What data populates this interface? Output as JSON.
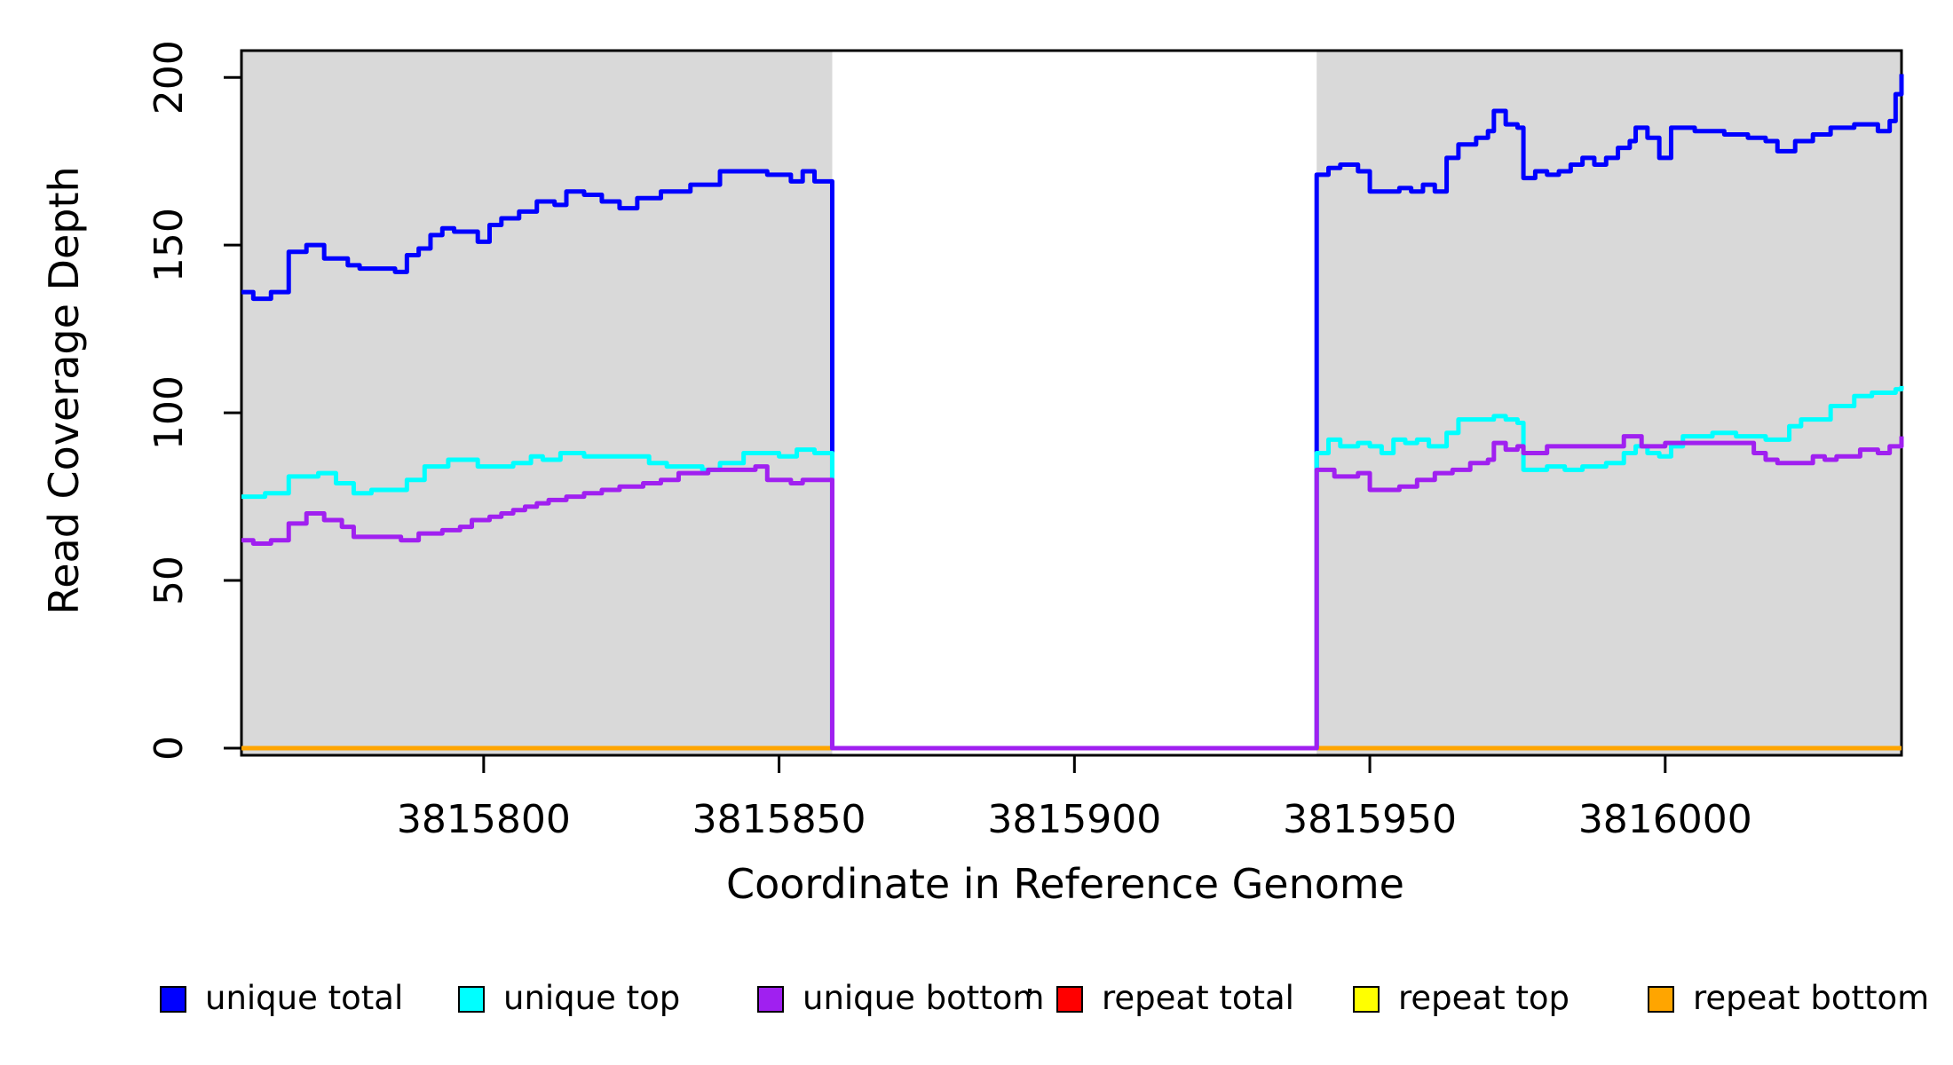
{
  "figure": {
    "background": "#ffffff",
    "plot_background_shaded": "#d9d9d9"
  },
  "chart_data": {
    "type": "line",
    "subtype": "step-coverage",
    "title": "",
    "xlabel": "Coordinate in Reference Genome",
    "ylabel": "Read Coverage Depth",
    "xlim": [
      3815759,
      3816040
    ],
    "ylim": [
      0,
      208
    ],
    "x_ticks": [
      3815800,
      3815850,
      3815900,
      3815950,
      3816000
    ],
    "y_ticks": [
      0,
      50,
      100,
      150,
      200
    ],
    "grid": false,
    "legend_position": "bottom",
    "shaded_regions": [
      {
        "start": 3815759,
        "end": 3815859,
        "color": "#d9d9d9"
      },
      {
        "start": 3815941,
        "end": 3816040,
        "color": "#d9d9d9"
      }
    ],
    "gap_region": {
      "start": 3815859,
      "end": 3815941,
      "note": "all unique coverage drops to 0"
    },
    "series": [
      {
        "name": "repeat total",
        "color": "#ff0000",
        "points": [
          [
            3815759,
            0
          ],
          [
            3816040,
            0
          ]
        ]
      },
      {
        "name": "repeat top",
        "color": "#ffff00",
        "points": [
          [
            3815759,
            0
          ],
          [
            3816040,
            0
          ]
        ]
      },
      {
        "name": "repeat bottom",
        "color": "#ffa500",
        "points": [
          [
            3815759,
            0
          ],
          [
            3816040,
            0
          ]
        ]
      },
      {
        "name": "unique total",
        "color": "#0000ff",
        "points": [
          [
            3815759,
            136
          ],
          [
            3815761,
            134
          ],
          [
            3815764,
            136
          ],
          [
            3815767,
            148
          ],
          [
            3815770,
            150
          ],
          [
            3815773,
            146
          ],
          [
            3815777,
            144
          ],
          [
            3815779,
            143
          ],
          [
            3815785,
            142
          ],
          [
            3815787,
            147
          ],
          [
            3815789,
            149
          ],
          [
            3815791,
            153
          ],
          [
            3815793,
            155
          ],
          [
            3815795,
            154
          ],
          [
            3815799,
            151
          ],
          [
            3815801,
            156
          ],
          [
            3815803,
            158
          ],
          [
            3815806,
            160
          ],
          [
            3815809,
            163
          ],
          [
            3815812,
            162
          ],
          [
            3815814,
            166
          ],
          [
            3815817,
            165
          ],
          [
            3815820,
            163
          ],
          [
            3815823,
            161
          ],
          [
            3815826,
            164
          ],
          [
            3815830,
            166
          ],
          [
            3815835,
            168
          ],
          [
            3815840,
            172
          ],
          [
            3815848,
            171
          ],
          [
            3815852,
            169
          ],
          [
            3815854,
            172
          ],
          [
            3815856,
            169
          ],
          [
            3815859,
            0
          ],
          [
            3815941,
            171
          ],
          [
            3815943,
            173
          ],
          [
            3815945,
            174
          ],
          [
            3815948,
            172
          ],
          [
            3815950,
            166
          ],
          [
            3815955,
            167
          ],
          [
            3815957,
            166
          ],
          [
            3815959,
            168
          ],
          [
            3815961,
            166
          ],
          [
            3815963,
            176
          ],
          [
            3815965,
            180
          ],
          [
            3815968,
            182
          ],
          [
            3815970,
            184
          ],
          [
            3815971,
            190
          ],
          [
            3815973,
            186
          ],
          [
            3815975,
            185
          ],
          [
            3815976,
            170
          ],
          [
            3815978,
            172
          ],
          [
            3815980,
            171
          ],
          [
            3815982,
            172
          ],
          [
            3815984,
            174
          ],
          [
            3815986,
            176
          ],
          [
            3815988,
            174
          ],
          [
            3815990,
            176
          ],
          [
            3815992,
            179
          ],
          [
            3815994,
            181
          ],
          [
            3815995,
            185
          ],
          [
            3815997,
            182
          ],
          [
            3815999,
            176
          ],
          [
            3816001,
            185
          ],
          [
            3816005,
            184
          ],
          [
            3816010,
            183
          ],
          [
            3816014,
            182
          ],
          [
            3816017,
            181
          ],
          [
            3816019,
            178
          ],
          [
            3816022,
            181
          ],
          [
            3816025,
            183
          ],
          [
            3816028,
            185
          ],
          [
            3816032,
            186
          ],
          [
            3816036,
            184
          ],
          [
            3816038,
            187
          ],
          [
            3816039,
            195
          ],
          [
            3816040,
            201
          ]
        ]
      },
      {
        "name": "unique top",
        "color": "#00ffff",
        "points": [
          [
            3815759,
            75
          ],
          [
            3815763,
            76
          ],
          [
            3815767,
            81
          ],
          [
            3815772,
            82
          ],
          [
            3815775,
            79
          ],
          [
            3815778,
            76
          ],
          [
            3815781,
            77
          ],
          [
            3815787,
            80
          ],
          [
            3815790,
            84
          ],
          [
            3815794,
            86
          ],
          [
            3815799,
            84
          ],
          [
            3815805,
            85
          ],
          [
            3815808,
            87
          ],
          [
            3815810,
            86
          ],
          [
            3815813,
            88
          ],
          [
            3815817,
            87
          ],
          [
            3815828,
            85
          ],
          [
            3815831,
            84
          ],
          [
            3815837,
            83
          ],
          [
            3815840,
            85
          ],
          [
            3815844,
            88
          ],
          [
            3815850,
            87
          ],
          [
            3815853,
            89
          ],
          [
            3815856,
            88
          ],
          [
            3815859,
            0
          ],
          [
            3815941,
            88
          ],
          [
            3815943,
            92
          ],
          [
            3815945,
            90
          ],
          [
            3815948,
            91
          ],
          [
            3815950,
            90
          ],
          [
            3815952,
            88
          ],
          [
            3815954,
            92
          ],
          [
            3815956,
            91
          ],
          [
            3815958,
            92
          ],
          [
            3815960,
            90
          ],
          [
            3815963,
            94
          ],
          [
            3815965,
            98
          ],
          [
            3815971,
            99
          ],
          [
            3815973,
            98
          ],
          [
            3815975,
            97
          ],
          [
            3815976,
            83
          ],
          [
            3815980,
            84
          ],
          [
            3815983,
            83
          ],
          [
            3815986,
            84
          ],
          [
            3815990,
            85
          ],
          [
            3815993,
            88
          ],
          [
            3815995,
            90
          ],
          [
            3815997,
            88
          ],
          [
            3815999,
            87
          ],
          [
            3816001,
            90
          ],
          [
            3816003,
            93
          ],
          [
            3816008,
            94
          ],
          [
            3816012,
            93
          ],
          [
            3816017,
            92
          ],
          [
            3816021,
            96
          ],
          [
            3816023,
            98
          ],
          [
            3816028,
            102
          ],
          [
            3816032,
            105
          ],
          [
            3816035,
            106
          ],
          [
            3816039,
            107
          ],
          [
            3816040,
            108
          ]
        ]
      },
      {
        "name": "unique bottom",
        "color": "#a020f0",
        "points": [
          [
            3815759,
            62
          ],
          [
            3815761,
            61
          ],
          [
            3815764,
            62
          ],
          [
            3815767,
            67
          ],
          [
            3815770,
            70
          ],
          [
            3815773,
            68
          ],
          [
            3815776,
            66
          ],
          [
            3815778,
            63
          ],
          [
            3815786,
            62
          ],
          [
            3815789,
            64
          ],
          [
            3815793,
            65
          ],
          [
            3815796,
            66
          ],
          [
            3815798,
            68
          ],
          [
            3815801,
            69
          ],
          [
            3815803,
            70
          ],
          [
            3815805,
            71
          ],
          [
            3815807,
            72
          ],
          [
            3815809,
            73
          ],
          [
            3815811,
            74
          ],
          [
            3815814,
            75
          ],
          [
            3815817,
            76
          ],
          [
            3815820,
            77
          ],
          [
            3815823,
            78
          ],
          [
            3815827,
            79
          ],
          [
            3815830,
            80
          ],
          [
            3815833,
            82
          ],
          [
            3815838,
            83
          ],
          [
            3815843,
            83
          ],
          [
            3815846,
            84
          ],
          [
            3815848,
            80
          ],
          [
            3815852,
            79
          ],
          [
            3815854,
            80
          ],
          [
            3815859,
            0
          ],
          [
            3815941,
            83
          ],
          [
            3815944,
            81
          ],
          [
            3815948,
            82
          ],
          [
            3815950,
            77
          ],
          [
            3815955,
            78
          ],
          [
            3815958,
            80
          ],
          [
            3815961,
            82
          ],
          [
            3815964,
            83
          ],
          [
            3815967,
            85
          ],
          [
            3815970,
            86
          ],
          [
            3815971,
            91
          ],
          [
            3815973,
            89
          ],
          [
            3815975,
            90
          ],
          [
            3815976,
            88
          ],
          [
            3815980,
            90
          ],
          [
            3815988,
            90
          ],
          [
            3815993,
            93
          ],
          [
            3815996,
            90
          ],
          [
            3816000,
            91
          ],
          [
            3816010,
            91
          ],
          [
            3816015,
            88
          ],
          [
            3816017,
            86
          ],
          [
            3816019,
            85
          ],
          [
            3816025,
            87
          ],
          [
            3816027,
            86
          ],
          [
            3816029,
            87
          ],
          [
            3816033,
            89
          ],
          [
            3816036,
            88
          ],
          [
            3816038,
            90
          ],
          [
            3816040,
            93
          ]
        ]
      }
    ],
    "legend": [
      {
        "label": "unique total",
        "color": "#0000ff"
      },
      {
        "label": "unique top",
        "color": "#00ffff"
      },
      {
        "label": "unique bottom",
        "color": "#a020f0"
      },
      {
        "label": "repeat total",
        "color": "#ff0000"
      },
      {
        "label": "repeat top",
        "color": "#ffff00"
      },
      {
        "label": "repeat bottom",
        "color": "#ffa500"
      }
    ]
  }
}
